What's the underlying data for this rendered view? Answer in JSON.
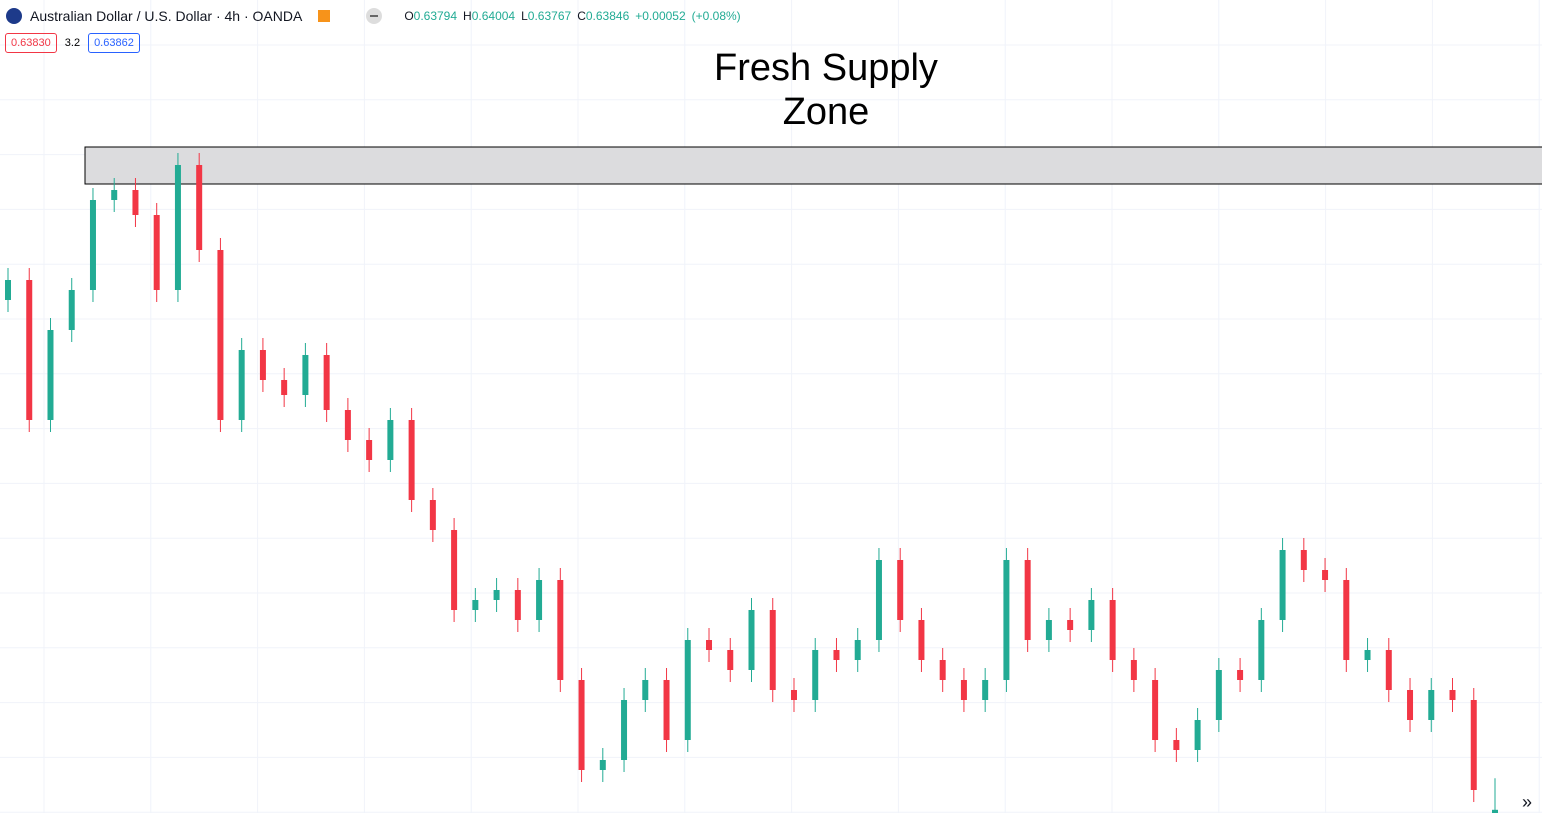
{
  "header": {
    "symbol": "Australian Dollar / U.S. Dollar · 4h · OANDA",
    "ohlc": {
      "o_label": "O",
      "o": 0.63794,
      "h_label": "H",
      "h": 0.64004,
      "l_label": "L",
      "l": 0.63767,
      "c_label": "C",
      "c": 0.63846,
      "change": "+0.00052",
      "change_pct": "(+0.08%)"
    },
    "bid": "0.63830",
    "spread": "3.2",
    "ask": "0.63862"
  },
  "chart_data": {
    "type": "candlestick",
    "up_color": "#22ab94",
    "down_color": "#f23645",
    "ylim": [
      0.6383,
      0.67895
    ],
    "annotation": "Fresh Supply Zone",
    "zone": {
      "top": 0.6716,
      "bottom": 0.66975
    },
    "open": [
      0.66395,
      0.66495,
      0.65795,
      0.66245,
      0.66445,
      0.66895,
      0.66945,
      0.6682,
      0.66445,
      0.6707,
      0.66645,
      0.65795,
      0.66145,
      0.65995,
      0.6592,
      0.6612,
      0.65845,
      0.65695,
      0.65595,
      0.65795,
      0.65395,
      0.65245,
      0.64845,
      0.64895,
      0.64945,
      0.64795,
      0.64995,
      0.64495,
      0.64045,
      0.64095,
      0.64395,
      0.64495,
      0.64195,
      0.64695,
      0.64645,
      0.64545,
      0.64845,
      0.64445,
      0.64395,
      0.64645,
      0.64595,
      0.64695,
      0.65095,
      0.64795,
      0.64595,
      0.64495,
      0.64395,
      0.64495,
      0.65095,
      0.64695,
      0.64795,
      0.64745,
      0.64895,
      0.64595,
      0.64495,
      0.64195,
      0.64145,
      0.64295,
      0.64545,
      0.64495,
      0.64795,
      0.65145,
      0.65045,
      0.64995,
      0.64595,
      0.64645,
      0.64445,
      0.64295,
      0.64445,
      0.64395,
      0.63794
    ],
    "high": [
      0.66555,
      0.66555,
      0.66305,
      0.66505,
      0.66955,
      0.67005,
      0.67005,
      0.6688,
      0.6713,
      0.6713,
      0.66705,
      0.66205,
      0.66205,
      0.66055,
      0.6618,
      0.6618,
      0.65905,
      0.65755,
      0.65855,
      0.65855,
      0.65455,
      0.65305,
      0.64955,
      0.65005,
      0.65005,
      0.65055,
      0.65055,
      0.64555,
      0.64155,
      0.64455,
      0.64555,
      0.64555,
      0.64755,
      0.64755,
      0.64705,
      0.64905,
      0.64905,
      0.64505,
      0.64705,
      0.64705,
      0.64755,
      0.65155,
      0.65155,
      0.64855,
      0.64655,
      0.64555,
      0.64555,
      0.65155,
      0.65155,
      0.64855,
      0.64855,
      0.64955,
      0.64955,
      0.64655,
      0.64555,
      0.64255,
      0.64355,
      0.64605,
      0.64605,
      0.64855,
      0.65205,
      0.65205,
      0.65105,
      0.65055,
      0.64705,
      0.64705,
      0.64505,
      0.64505,
      0.64505,
      0.64455,
      0.64004
    ],
    "low": [
      0.66335,
      0.65735,
      0.65735,
      0.66185,
      0.66385,
      0.66835,
      0.6676,
      0.66385,
      0.66385,
      0.66585,
      0.65735,
      0.65735,
      0.65935,
      0.6586,
      0.6586,
      0.65785,
      0.65635,
      0.65535,
      0.65535,
      0.65335,
      0.65185,
      0.64785,
      0.64785,
      0.64835,
      0.64735,
      0.64735,
      0.64435,
      0.63985,
      0.63985,
      0.64035,
      0.64335,
      0.64135,
      0.64135,
      0.64585,
      0.64485,
      0.64485,
      0.64385,
      0.64335,
      0.64335,
      0.64535,
      0.64535,
      0.64635,
      0.64735,
      0.64535,
      0.64435,
      0.64335,
      0.64335,
      0.64435,
      0.64635,
      0.64635,
      0.64685,
      0.64685,
      0.64535,
      0.64435,
      0.64135,
      0.64085,
      0.64085,
      0.64235,
      0.64435,
      0.64435,
      0.64735,
      0.64985,
      0.64935,
      0.64535,
      0.64535,
      0.64385,
      0.64235,
      0.64235,
      0.64335,
      0.63885,
      0.63767
    ],
    "close": [
      0.66495,
      0.65795,
      0.66245,
      0.66445,
      0.66895,
      0.66945,
      0.6682,
      0.66445,
      0.6707,
      0.66645,
      0.65795,
      0.66145,
      0.65995,
      0.6592,
      0.6612,
      0.65845,
      0.65695,
      0.65595,
      0.65795,
      0.65395,
      0.65245,
      0.64845,
      0.64895,
      0.64945,
      0.64795,
      0.64995,
      0.64495,
      0.64045,
      0.64095,
      0.64395,
      0.64495,
      0.64195,
      0.64695,
      0.64645,
      0.64545,
      0.64845,
      0.64445,
      0.64395,
      0.64645,
      0.64595,
      0.64695,
      0.65095,
      0.64795,
      0.64595,
      0.64495,
      0.64395,
      0.64495,
      0.65095,
      0.64695,
      0.64795,
      0.64745,
      0.64895,
      0.64595,
      0.64495,
      0.64195,
      0.64145,
      0.64295,
      0.64545,
      0.64495,
      0.64795,
      0.65145,
      0.65045,
      0.64995,
      0.64595,
      0.64645,
      0.64445,
      0.64295,
      0.64445,
      0.64395,
      0.63945,
      0.63846
    ]
  }
}
